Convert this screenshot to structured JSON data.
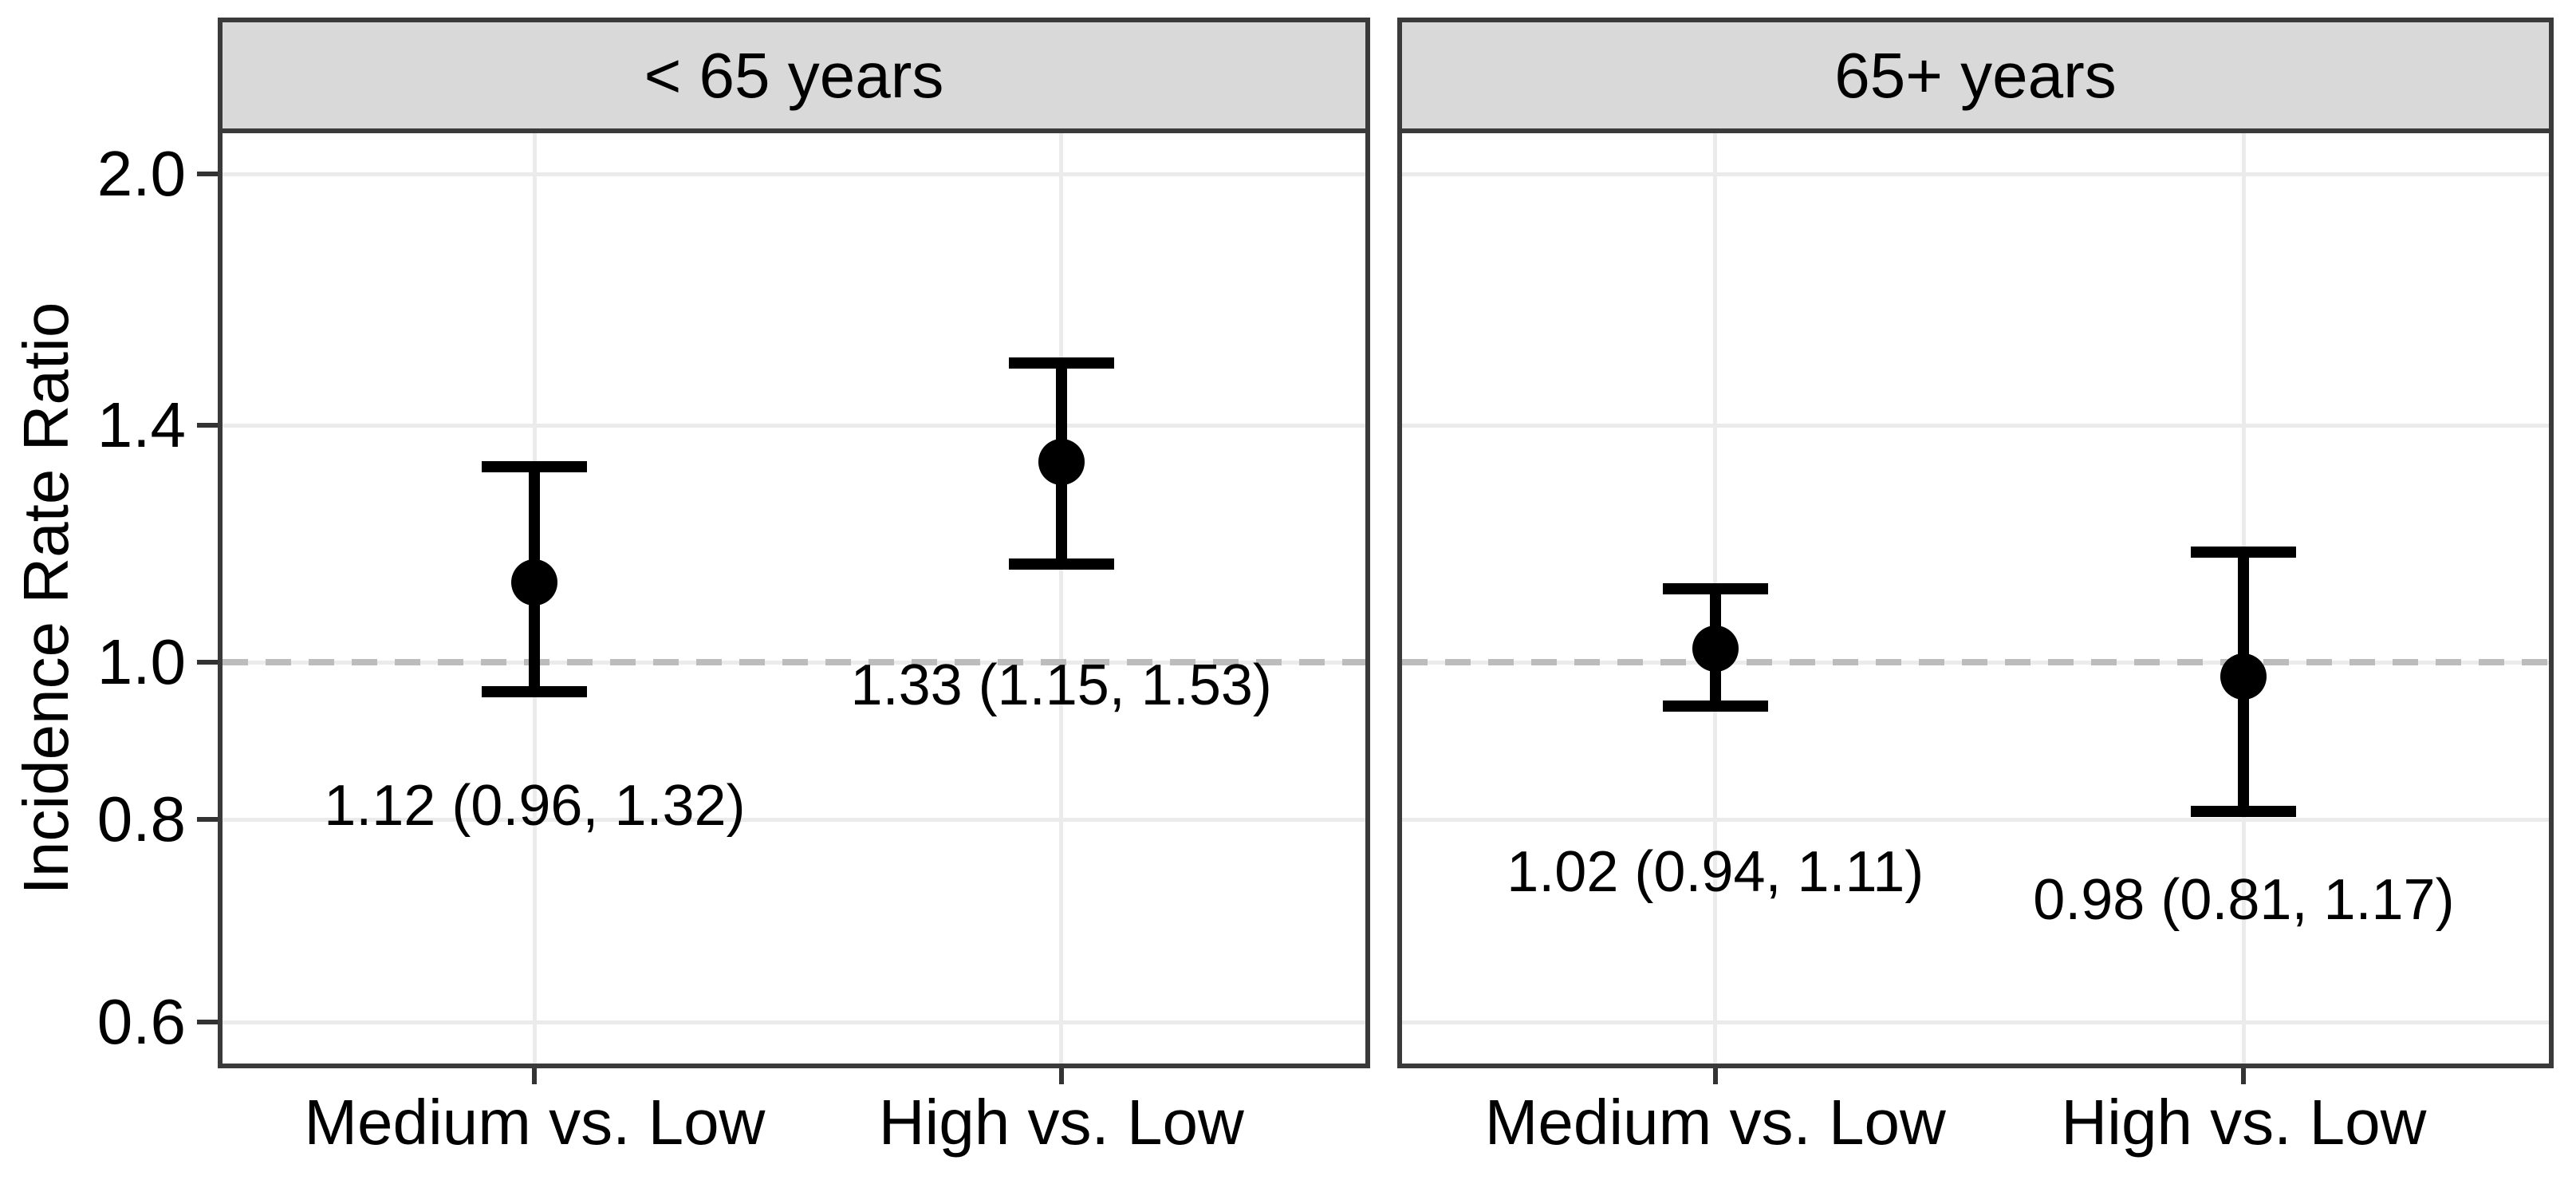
{
  "chart_data": {
    "type": "scatter",
    "subtype": "point-range-forest-plot",
    "title": "",
    "xlabel": "",
    "ylabel": "Incidence Rate Ratio",
    "y_scale": "log10",
    "ylim": [
      0.566,
      2.12
    ],
    "grid": "major-only",
    "reference_line": {
      "value": 1.0,
      "style": "dashed",
      "color": "#bcbcbc"
    },
    "y_ticks": [
      {
        "value": 0.6,
        "label": "0.6"
      },
      {
        "value": 0.8,
        "label": "0.8"
      },
      {
        "value": 1.0,
        "label": "1.0"
      },
      {
        "value": 1.4,
        "label": "1.4"
      },
      {
        "value": 2.0,
        "label": "2.0"
      }
    ],
    "categories": [
      "Medium vs. Low",
      "High vs. Low"
    ],
    "facets": [
      {
        "title": "< 65 years",
        "points": [
          {
            "category": "Medium vs. Low",
            "estimate": 1.12,
            "ci_low": 0.96,
            "ci_high": 1.32,
            "label": "1.12 (0.96, 1.32)"
          },
          {
            "category": "High vs. Low",
            "estimate": 1.33,
            "ci_low": 1.15,
            "ci_high": 1.53,
            "label": "1.33 (1.15, 1.53)"
          }
        ]
      },
      {
        "title": "65+ years",
        "points": [
          {
            "category": "Medium vs. Low",
            "estimate": 1.02,
            "ci_low": 0.94,
            "ci_high": 1.11,
            "label": "1.02 (0.94, 1.11)"
          },
          {
            "category": "High vs. Low",
            "estimate": 0.98,
            "ci_low": 0.81,
            "ci_high": 1.17,
            "label": "0.98 (0.81, 1.17)"
          }
        ]
      }
    ],
    "colors": {
      "point_and_errorbar": "#000000",
      "strip_fill": "#d9d9d9",
      "panel_border": "#3a3a3a",
      "gridline": "#ebebeb",
      "reference_line": "#bcbcbc",
      "text": "#000000"
    }
  }
}
